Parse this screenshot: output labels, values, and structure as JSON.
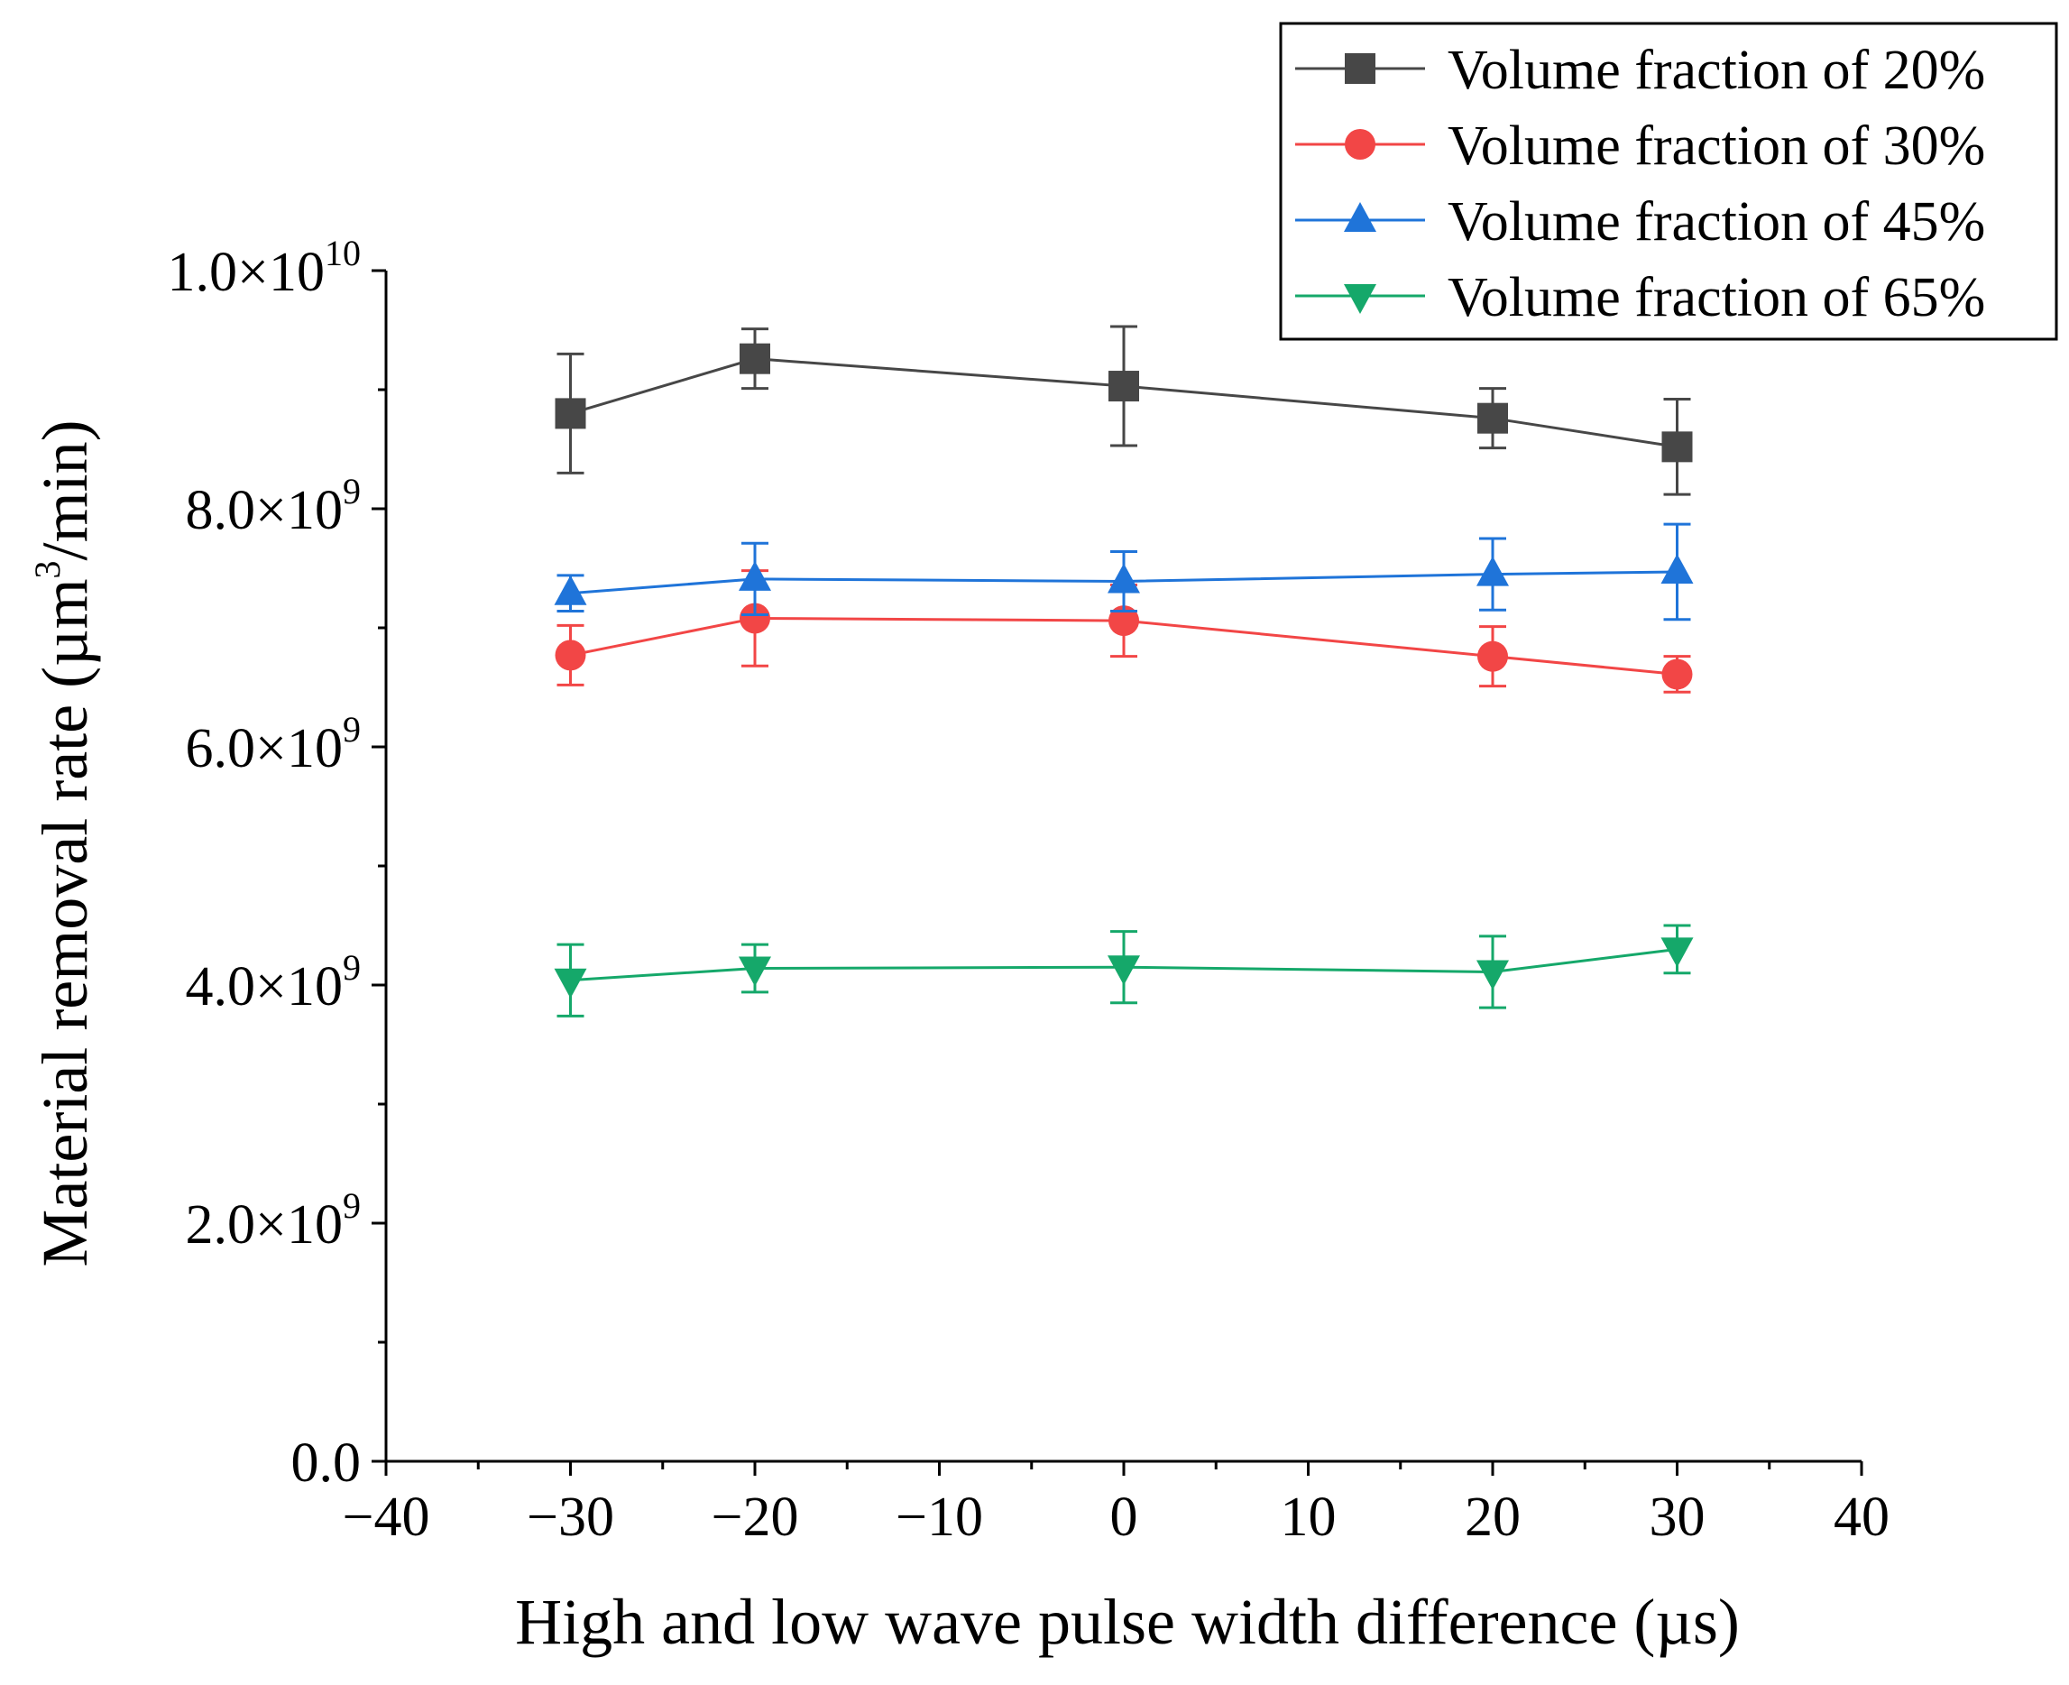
{
  "chart_data": {
    "type": "line",
    "title": "",
    "xlabel": "High and low wave pulse width difference (µs)",
    "ylabel": {
      "prefix": "Material removal rate (µm",
      "sup": "3",
      "suffix": "/min)"
    },
    "xlim": [
      -40,
      40
    ],
    "ylim": [
      0,
      10000000000
    ],
    "x_ticks": [
      -40,
      -30,
      -20,
      -10,
      0,
      10,
      20,
      30,
      40
    ],
    "x_tick_labels": [
      "−40",
      "−30",
      "−20",
      "−10",
      "0",
      "10",
      "20",
      "30",
      "40"
    ],
    "y_ticks": [
      0,
      2000000000,
      4000000000,
      6000000000,
      8000000000,
      10000000000
    ],
    "y_tick_labels": [
      {
        "mantissa": "0.0",
        "exp": ""
      },
      {
        "mantissa": "2.0×10",
        "exp": "9"
      },
      {
        "mantissa": "4.0×10",
        "exp": "9"
      },
      {
        "mantissa": "6.0×10",
        "exp": "9"
      },
      {
        "mantissa": "8.0×10",
        "exp": "9"
      },
      {
        "mantissa": "1.0×10",
        "exp": "10"
      }
    ],
    "legend_position": "top-right",
    "x": [
      -30,
      -20,
      0,
      20,
      30
    ],
    "series": [
      {
        "name": "Volume fraction of 20%",
        "color": "#474747",
        "marker": "square",
        "values": [
          8800000000,
          9260000000,
          9030000000,
          8760000000,
          8520000000
        ],
        "errors": [
          500000000,
          250000000,
          500000000,
          250000000,
          400000000
        ]
      },
      {
        "name": "Volume fraction of 30%",
        "color": "#f24646",
        "marker": "circle",
        "values": [
          6770000000,
          7080000000,
          7060000000,
          6760000000,
          6610000000
        ],
        "errors": [
          250000000,
          400000000,
          300000000,
          250000000,
          150000000
        ]
      },
      {
        "name": "Volume fraction of 45%",
        "color": "#1f74d9",
        "marker": "triangle-up",
        "values": [
          7290000000,
          7410000000,
          7390000000,
          7450000000,
          7470000000
        ],
        "errors": [
          150000000,
          300000000,
          250000000,
          300000000,
          400000000
        ]
      },
      {
        "name": "Volume fraction of 65%",
        "color": "#15a86a",
        "marker": "triangle-down",
        "values": [
          4040000000,
          4140000000,
          4150000000,
          4110000000,
          4300000000
        ],
        "errors": [
          300000000,
          200000000,
          300000000,
          300000000,
          200000000
        ]
      }
    ]
  }
}
